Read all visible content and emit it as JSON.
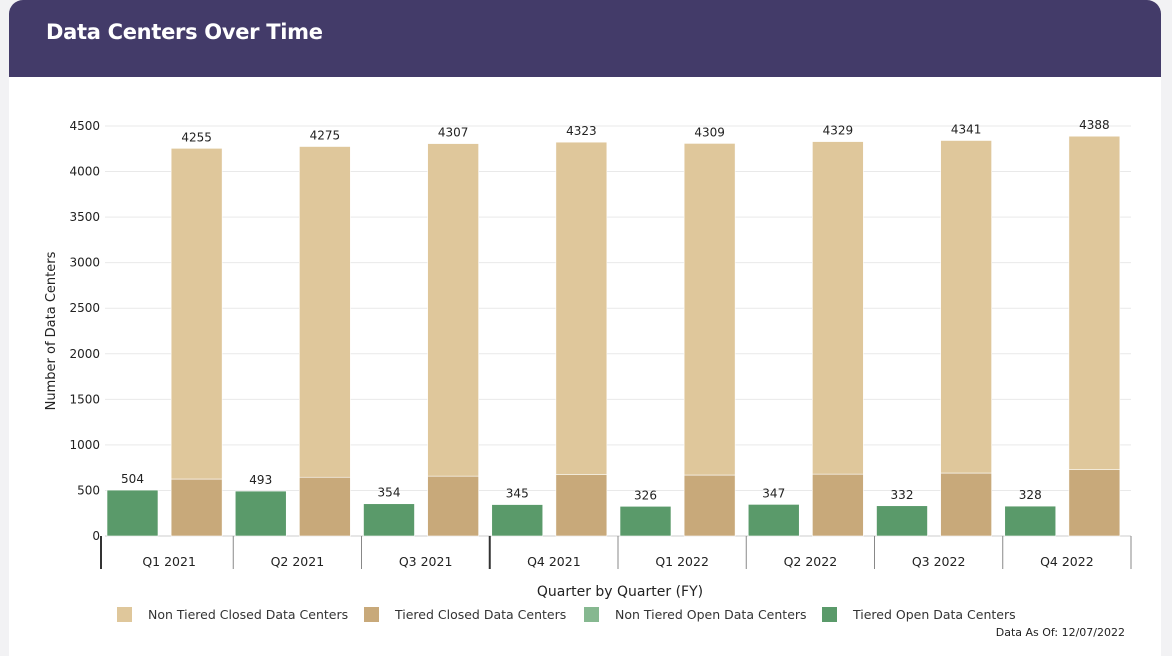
{
  "header": {
    "title": "Data Centers Over Time"
  },
  "chart_data": {
    "type": "bar",
    "title": "Data Centers Over Time",
    "xlabel": "Quarter by Quarter (FY)",
    "ylabel": "Number of Data Centers",
    "ylim": [
      0,
      4500
    ],
    "yticks": [
      0,
      500,
      1000,
      1500,
      2000,
      2500,
      3000,
      3500,
      4000,
      4500
    ],
    "grid": true,
    "legend_position": "bottom",
    "categories": [
      "Q1 2021",
      "Q2 2021",
      "Q3 2021",
      "Q4 2021",
      "Q1 2022",
      "Q2 2022",
      "Q3 2022",
      "Q4 2022"
    ],
    "open_totals": [
      504,
      493,
      354,
      345,
      326,
      347,
      332,
      328
    ],
    "closed_totals": [
      4255,
      4275,
      4307,
      4323,
      4309,
      4329,
      4341,
      4388
    ],
    "series": [
      {
        "name": "Non Tiered Closed Data Centers",
        "stack": "closed",
        "color": "#dfc79b",
        "values": [
          3630,
          3630,
          3650,
          3650,
          3640,
          3650,
          3650,
          3660
        ]
      },
      {
        "name": "Tiered Closed Data Centers",
        "stack": "closed",
        "color": "#c8a97a",
        "values": [
          625,
          645,
          657,
          673,
          669,
          679,
          691,
          728
        ]
      },
      {
        "name": "Non Tiered Open Data Centers",
        "stack": "open",
        "color": "#86b890",
        "values": [
          0,
          0,
          0,
          0,
          0,
          0,
          0,
          0
        ]
      },
      {
        "name": "Tiered Open Data Centers",
        "stack": "open",
        "color": "#5a9a6a",
        "values": [
          504,
          493,
          354,
          345,
          326,
          347,
          332,
          328
        ]
      }
    ]
  },
  "footnote": "Data As Of: 12/07/2022"
}
